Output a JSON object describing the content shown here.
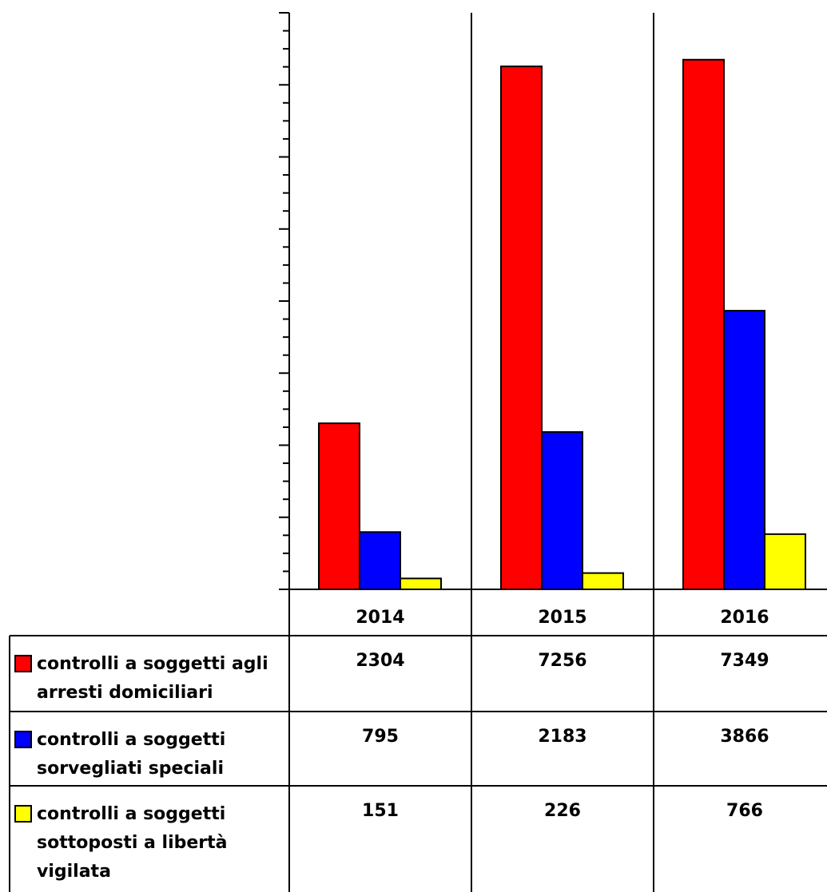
{
  "chart_data": {
    "type": "bar",
    "categories": [
      "2014",
      "2015",
      "2016"
    ],
    "series": [
      {
        "name": "controlli a soggetti agli arresti domiciliari",
        "values": [
          2304,
          7256,
          7349
        ],
        "color": "#ff0000",
        "label_lines": [
          "controlli a soggetti agli",
          "arresti domiciliari"
        ]
      },
      {
        "name": "controlli a soggetti sorvegliati speciali",
        "values": [
          795,
          2183,
          3866
        ],
        "color": "#0000ff",
        "label_lines": [
          "controlli a soggetti",
          "sorvegliati speciali"
        ]
      },
      {
        "name": "controlli a soggetti sottoposti a libertà vigilata",
        "values": [
          151,
          226,
          766
        ],
        "color": "#ffff00",
        "label_lines": [
          "controlli a soggetti",
          "sottoposti a libertà",
          "vigilata"
        ]
      }
    ],
    "ylim": [
      0,
      8000
    ],
    "grid": false,
    "legend": "data-table"
  }
}
